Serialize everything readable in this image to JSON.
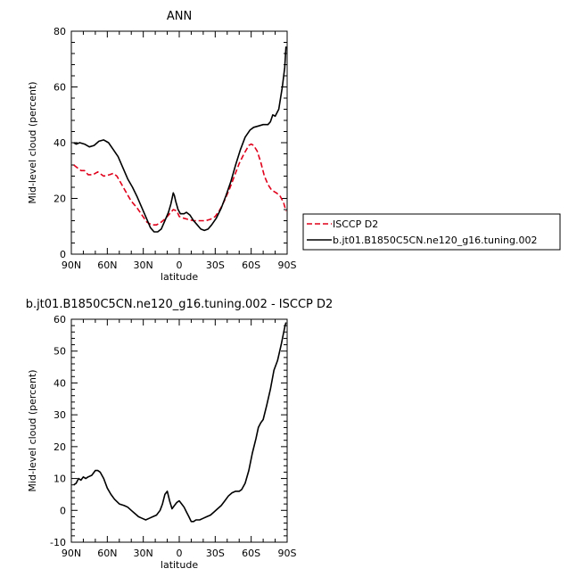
{
  "chart_data": [
    {
      "type": "line",
      "title": "ANN",
      "xlabel": "latitude",
      "ylabel": "Mid-level cloud (percent)",
      "xlim": [
        -90,
        90
      ],
      "ylim": [
        0,
        80
      ],
      "x_ticks": [
        {
          "value": -90,
          "label": "90N"
        },
        {
          "value": -60,
          "label": "60N"
        },
        {
          "value": -30,
          "label": "30N"
        },
        {
          "value": 0,
          "label": "0"
        },
        {
          "value": 30,
          "label": "30S"
        },
        {
          "value": 60,
          "label": "60S"
        },
        {
          "value": 90,
          "label": "90S"
        }
      ],
      "y_ticks": [
        0,
        20,
        40,
        60,
        80
      ],
      "legend_position": "right",
      "series": [
        {
          "name": "ISCCP D2",
          "color": "#e0001a",
          "style": "dashed",
          "points": [
            [
              -88,
              32
            ],
            [
              -85,
              31
            ],
            [
              -82,
              30
            ],
            [
              -79,
              30
            ],
            [
              -76,
              28.5
            ],
            [
              -72,
              28.5
            ],
            [
              -68,
              29.5
            ],
            [
              -63,
              28
            ],
            [
              -58,
              28.5
            ],
            [
              -55,
              29
            ],
            [
              -52,
              28
            ],
            [
              -48,
              25
            ],
            [
              -44,
              22
            ],
            [
              -40,
              19
            ],
            [
              -35,
              16.5
            ],
            [
              -31,
              14
            ],
            [
              -27,
              11.5
            ],
            [
              -23,
              10.5
            ],
            [
              -19,
              10.5
            ],
            [
              -15,
              11.5
            ],
            [
              -11,
              13
            ],
            [
              -8,
              14.5
            ],
            [
              -5,
              16
            ],
            [
              -2,
              15.5
            ],
            [
              0,
              13.5
            ],
            [
              3,
              13
            ],
            [
              7,
              12.5
            ],
            [
              12,
              12
            ],
            [
              17,
              12
            ],
            [
              22,
              12
            ],
            [
              26,
              12.5
            ],
            [
              30,
              13.5
            ],
            [
              34,
              16
            ],
            [
              38,
              19.5
            ],
            [
              42,
              23.5
            ],
            [
              46,
              28
            ],
            [
              50,
              32.5
            ],
            [
              54,
              36
            ],
            [
              58,
              39
            ],
            [
              60,
              39.5
            ],
            [
              62,
              39
            ],
            [
              65,
              37
            ],
            [
              68,
              33
            ],
            [
              71,
              28
            ],
            [
              74,
              25
            ],
            [
              77,
              23
            ],
            [
              81,
              22
            ],
            [
              84,
              21
            ],
            [
              87,
              18.5
            ],
            [
              89,
              15.5
            ]
          ]
        },
        {
          "name": "b.jt01.B1850C5CN.ne120_g16.tuning.002",
          "color": "#000000",
          "style": "solid",
          "points": [
            [
              -88,
              40
            ],
            [
              -86,
              39.5
            ],
            [
              -83,
              40
            ],
            [
              -79,
              39.5
            ],
            [
              -75,
              38.5
            ],
            [
              -71,
              39
            ],
            [
              -67,
              40.5
            ],
            [
              -63,
              41
            ],
            [
              -59,
              40
            ],
            [
              -55,
              37.5
            ],
            [
              -51,
              35
            ],
            [
              -47,
              31
            ],
            [
              -43,
              27
            ],
            [
              -39,
              24
            ],
            [
              -35,
              20.5
            ],
            [
              -31,
              16.5
            ],
            [
              -27,
              12.5
            ],
            [
              -24,
              9.5
            ],
            [
              -21,
              8
            ],
            [
              -18,
              8
            ],
            [
              -15,
              9
            ],
            [
              -12,
              12
            ],
            [
              -9,
              15
            ],
            [
              -7,
              18
            ],
            [
              -5,
              22
            ],
            [
              -4,
              21
            ],
            [
              -3,
              19
            ],
            [
              -1,
              16
            ],
            [
              1,
              14.5
            ],
            [
              4,
              14.5
            ],
            [
              6,
              15
            ],
            [
              9,
              14
            ],
            [
              12,
              12
            ],
            [
              15,
              10.5
            ],
            [
              18,
              9
            ],
            [
              21,
              8.5
            ],
            [
              24,
              9
            ],
            [
              27,
              10.5
            ],
            [
              31,
              13
            ],
            [
              35,
              16.5
            ],
            [
              39,
              21
            ],
            [
              43,
              26
            ],
            [
              47,
              32
            ],
            [
              51,
              37.5
            ],
            [
              55,
              42
            ],
            [
              59,
              44.5
            ],
            [
              62,
              45.5
            ],
            [
              66,
              46
            ],
            [
              70,
              46.5
            ],
            [
              74,
              46.5
            ],
            [
              76,
              47.5
            ],
            [
              78,
              50
            ],
            [
              80,
              49.5
            ],
            [
              83,
              52
            ],
            [
              86,
              60
            ],
            [
              88,
              67
            ],
            [
              89,
              74.5
            ]
          ]
        }
      ]
    },
    {
      "type": "line",
      "title": "b.jt01.B1850C5CN.ne120_g16.tuning.002 - ISCCP D2",
      "xlabel": "latitude",
      "ylabel": "Mid-level cloud (percent)",
      "xlim": [
        -90,
        90
      ],
      "ylim": [
        -10,
        60
      ],
      "x_ticks": [
        {
          "value": -90,
          "label": "90N"
        },
        {
          "value": -60,
          "label": "60N"
        },
        {
          "value": -30,
          "label": "30N"
        },
        {
          "value": 0,
          "label": "0"
        },
        {
          "value": 30,
          "label": "30S"
        },
        {
          "value": 60,
          "label": "60S"
        },
        {
          "value": 90,
          "label": "90S"
        }
      ],
      "y_ticks": [
        -10,
        0,
        10,
        20,
        30,
        40,
        50,
        60
      ],
      "series": [
        {
          "color": "#000000",
          "style": "solid",
          "points": [
            [
              -88,
              8
            ],
            [
              -86,
              8.5
            ],
            [
              -84,
              10
            ],
            [
              -82,
              9.5
            ],
            [
              -80,
              10.5
            ],
            [
              -78,
              10
            ],
            [
              -76,
              10.5
            ],
            [
              -73,
              11
            ],
            [
              -70,
              12.5
            ],
            [
              -68,
              12.5
            ],
            [
              -66,
              12
            ],
            [
              -63,
              10
            ],
            [
              -60,
              7
            ],
            [
              -57,
              5
            ],
            [
              -54,
              3.5
            ],
            [
              -50,
              2
            ],
            [
              -46,
              1.5
            ],
            [
              -43,
              1
            ],
            [
              -40,
              0
            ],
            [
              -37,
              -1
            ],
            [
              -34,
              -2
            ],
            [
              -31,
              -2.5
            ],
            [
              -28,
              -3
            ],
            [
              -25,
              -2.5
            ],
            [
              -22,
              -2
            ],
            [
              -19,
              -1.5
            ],
            [
              -16,
              0
            ],
            [
              -14,
              2
            ],
            [
              -12,
              5
            ],
            [
              -10,
              6
            ],
            [
              -8,
              3
            ],
            [
              -6,
              0.5
            ],
            [
              -4,
              1.5
            ],
            [
              -2,
              2.5
            ],
            [
              0,
              3
            ],
            [
              2,
              2
            ],
            [
              4,
              1
            ],
            [
              6,
              -0.5
            ],
            [
              8,
              -2
            ],
            [
              10,
              -3.5
            ],
            [
              12,
              -3.5
            ],
            [
              14,
              -3
            ],
            [
              17,
              -3
            ],
            [
              20,
              -2.5
            ],
            [
              23,
              -2
            ],
            [
              26,
              -1.5
            ],
            [
              29,
              -0.5
            ],
            [
              32,
              0.5
            ],
            [
              35,
              1.5
            ],
            [
              38,
              3
            ],
            [
              41,
              4.5
            ],
            [
              44,
              5.5
            ],
            [
              47,
              6
            ],
            [
              50,
              6
            ],
            [
              52,
              6.5
            ],
            [
              55,
              8.5
            ],
            [
              58,
              12.5
            ],
            [
              61,
              18
            ],
            [
              64,
              22.5
            ],
            [
              66,
              26
            ],
            [
              68,
              27.5
            ],
            [
              70,
              28.5
            ],
            [
              73,
              33
            ],
            [
              76,
              38
            ],
            [
              79,
              44
            ],
            [
              82,
              47
            ],
            [
              85,
              52
            ],
            [
              88,
              57.5
            ],
            [
              89,
              59
            ]
          ]
        }
      ]
    }
  ]
}
